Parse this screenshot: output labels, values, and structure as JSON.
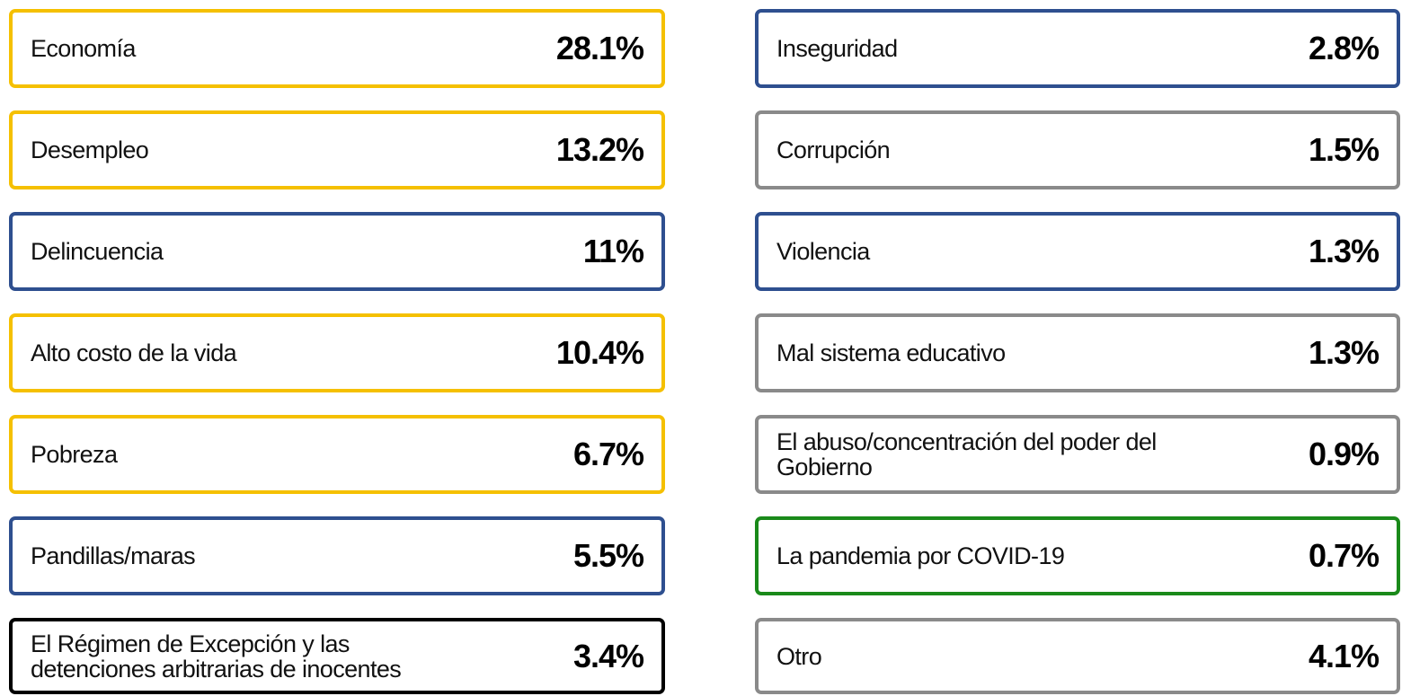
{
  "items": [
    {
      "label": "Economía",
      "value": "28.1%",
      "color": "#f5c000"
    },
    {
      "label": "Desempleo",
      "value": "13.2%",
      "color": "#f5c000"
    },
    {
      "label": "Delincuencia",
      "value": "11%",
      "color": "#2e4f8f"
    },
    {
      "label": "Alto costo de la vida",
      "value": "10.4%",
      "color": "#f5c000"
    },
    {
      "label": "Pobreza",
      "value": "6.7%",
      "color": "#f5c000"
    },
    {
      "label": "Pandillas/maras",
      "value": "5.5%",
      "color": "#2e4f8f"
    },
    {
      "label": "El Régimen de Excepción y las detenciones arbitrarias de inocentes",
      "value": "3.4%",
      "color": "#000000"
    },
    {
      "label": "Inseguridad",
      "value": "2.8%",
      "color": "#2e4f8f"
    },
    {
      "label": "Corrupción",
      "value": "1.5%",
      "color": "#8a8a8a"
    },
    {
      "label": "Violencia",
      "value": "1.3%",
      "color": "#2e4f8f"
    },
    {
      "label": "Mal sistema educativo",
      "value": "1.3%",
      "color": "#8a8a8a"
    },
    {
      "label": "El abuso/concentración del poder del Gobierno",
      "value": "0.9%",
      "color": "#8a8a8a"
    },
    {
      "label": "La pandemia por COVID-19",
      "value": "0.7%",
      "color": "#1a8a1a"
    },
    {
      "label": "Otro",
      "value": "4.1%",
      "color": "#8a8a8a"
    }
  ]
}
